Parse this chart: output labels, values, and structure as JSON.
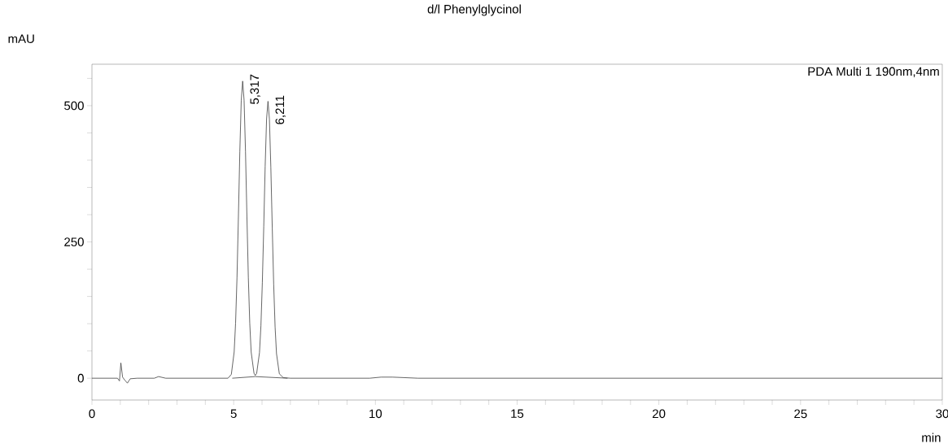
{
  "chart_data": {
    "type": "line",
    "title": "d/l Phenylglycinol",
    "xlabel": "min",
    "ylabel": "mAU",
    "xlim": [
      0,
      30
    ],
    "ylim": [
      -40,
      576
    ],
    "xticks": [
      0,
      {
        "value": 1,
        "label": null
      },
      {
        "value": 2,
        "label": null
      },
      {
        "value": 3,
        "label": null
      },
      {
        "value": 4,
        "label": null
      },
      5,
      {
        "value": 6,
        "label": null
      },
      {
        "value": 7,
        "label": null
      },
      {
        "value": 8,
        "label": null
      },
      {
        "value": 9,
        "label": null
      },
      10,
      {
        "value": 11,
        "label": null
      },
      {
        "value": 12,
        "label": null
      },
      {
        "value": 13,
        "label": null
      },
      {
        "value": 14,
        "label": null
      },
      15,
      {
        "value": 16,
        "label": null
      },
      {
        "value": 17,
        "label": null
      },
      {
        "value": 18,
        "label": null
      },
      {
        "value": 19,
        "label": null
      },
      20,
      {
        "value": 21,
        "label": null
      },
      {
        "value": 22,
        "label": null
      },
      {
        "value": 23,
        "label": null
      },
      {
        "value": 24,
        "label": null
      },
      25,
      {
        "value": 26,
        "label": null
      },
      {
        "value": 27,
        "label": null
      },
      {
        "value": 28,
        "label": null
      },
      {
        "value": 29,
        "label": null
      },
      30
    ],
    "yticks": [
      0,
      {
        "value": 50,
        "label": null
      },
      {
        "value": 100,
        "label": null
      },
      {
        "value": 150,
        "label": null
      },
      {
        "value": 200,
        "label": null
      },
      250,
      {
        "value": 300,
        "label": null
      },
      {
        "value": 350,
        "label": null
      },
      {
        "value": 400,
        "label": null
      },
      {
        "value": 450,
        "label": null
      },
      500,
      {
        "value": 550,
        "label": null
      }
    ],
    "series": [
      {
        "color": "#404040",
        "x": [
          0,
          0.9,
          0.97,
          1.02,
          1.08,
          1.15,
          1.25,
          1.35,
          1.6,
          2.2,
          2.35,
          2.6,
          4.8,
          4.917,
          5.017,
          5.067,
          5.117,
          5.167,
          5.217,
          5.267,
          5.317,
          5.367,
          5.417,
          5.467,
          5.517,
          5.567,
          5.617,
          5.717,
          5.76,
          5.811,
          5.911,
          5.961,
          6.011,
          6.061,
          6.111,
          6.161,
          6.211,
          6.261,
          6.311,
          6.361,
          6.411,
          6.461,
          6.511,
          6.611,
          6.75,
          7,
          9.8,
          10.2,
          10.6,
          11.5,
          30
        ],
        "values": [
          0,
          0,
          -5,
          28,
          2,
          -3,
          -9,
          -1,
          0,
          0,
          3,
          0,
          0,
          7,
          48,
          101,
          185,
          297,
          416,
          510,
          545,
          510,
          416,
          297,
          185,
          101,
          48,
          9,
          5,
          9,
          47,
          96,
          175,
          278,
          389,
          476,
          508,
          475,
          387,
          276,
          173,
          94,
          45,
          8,
          1,
          0,
          0,
          2,
          2,
          0,
          0
        ]
      },
      {
        "color": "#404040",
        "x": [
          4.95,
          5.76,
          6.9
        ],
        "values": [
          0,
          3,
          0
        ]
      }
    ],
    "annotations": [
      "PDA Multi 1 190nm,4nm",
      {
        "text": "5,317",
        "x": 5.317,
        "y": 545
      },
      {
        "text": "6,211",
        "x": 6.211,
        "y": 508
      }
    ]
  }
}
